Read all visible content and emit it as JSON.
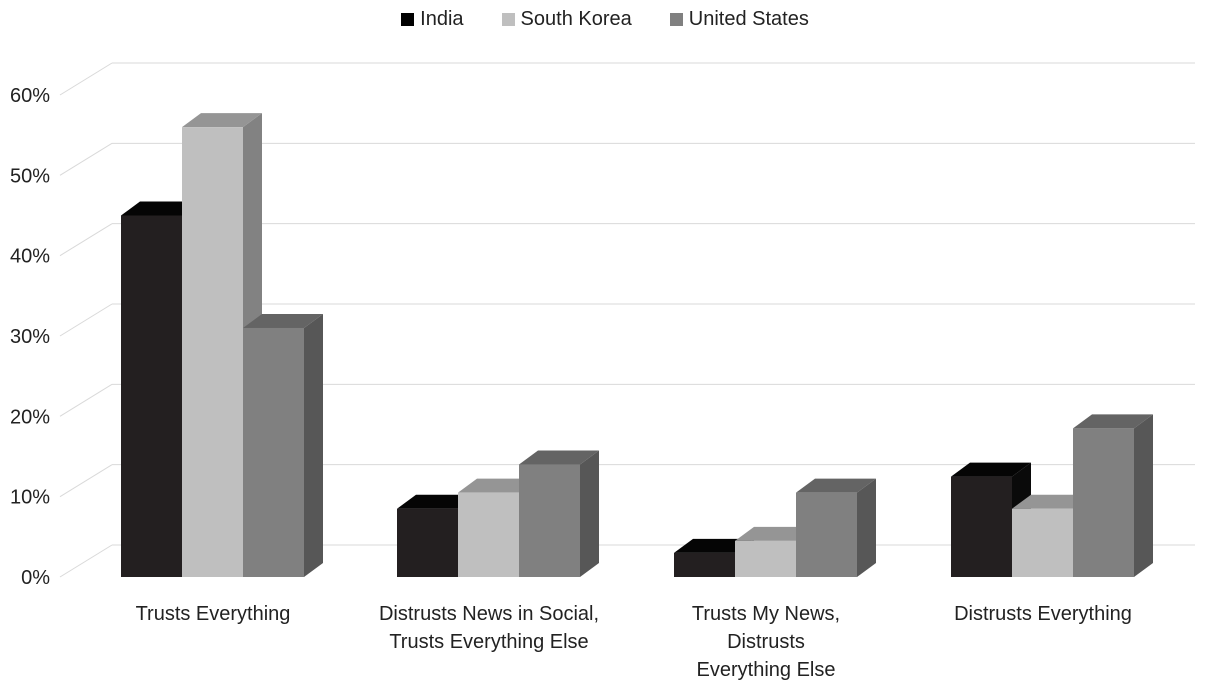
{
  "chart_data": {
    "type": "bar",
    "title": "",
    "xlabel": "",
    "ylabel": "",
    "categories": [
      [
        "Trusts Everything"
      ],
      [
        "Distrusts News in Social,",
        "Trusts Everything Else"
      ],
      [
        "Trusts My News,",
        "Distrusts",
        "Everything Else"
      ],
      [
        "Distrusts Everything"
      ]
    ],
    "series": [
      {
        "name": "India",
        "color": "#231f20",
        "values": [
          0.45,
          0.085,
          0.03,
          0.125
        ]
      },
      {
        "name": "South Korea",
        "color": "#bfbfbf",
        "values": [
          0.56,
          0.105,
          0.045,
          0.085
        ]
      },
      {
        "name": "United States",
        "color": "#808080",
        "values": [
          0.31,
          0.14,
          0.105,
          0.185
        ]
      }
    ],
    "ylim": [
      0,
      0.6
    ],
    "yticks": [
      0,
      0.1,
      0.2,
      0.3,
      0.4,
      0.5,
      0.6
    ],
    "ytick_labels": [
      "0%",
      "10%",
      "20%",
      "30%",
      "40%",
      "50%",
      "60%"
    ],
    "legend_position": "top-center",
    "grid": true,
    "style": "3d-clustered-column"
  }
}
